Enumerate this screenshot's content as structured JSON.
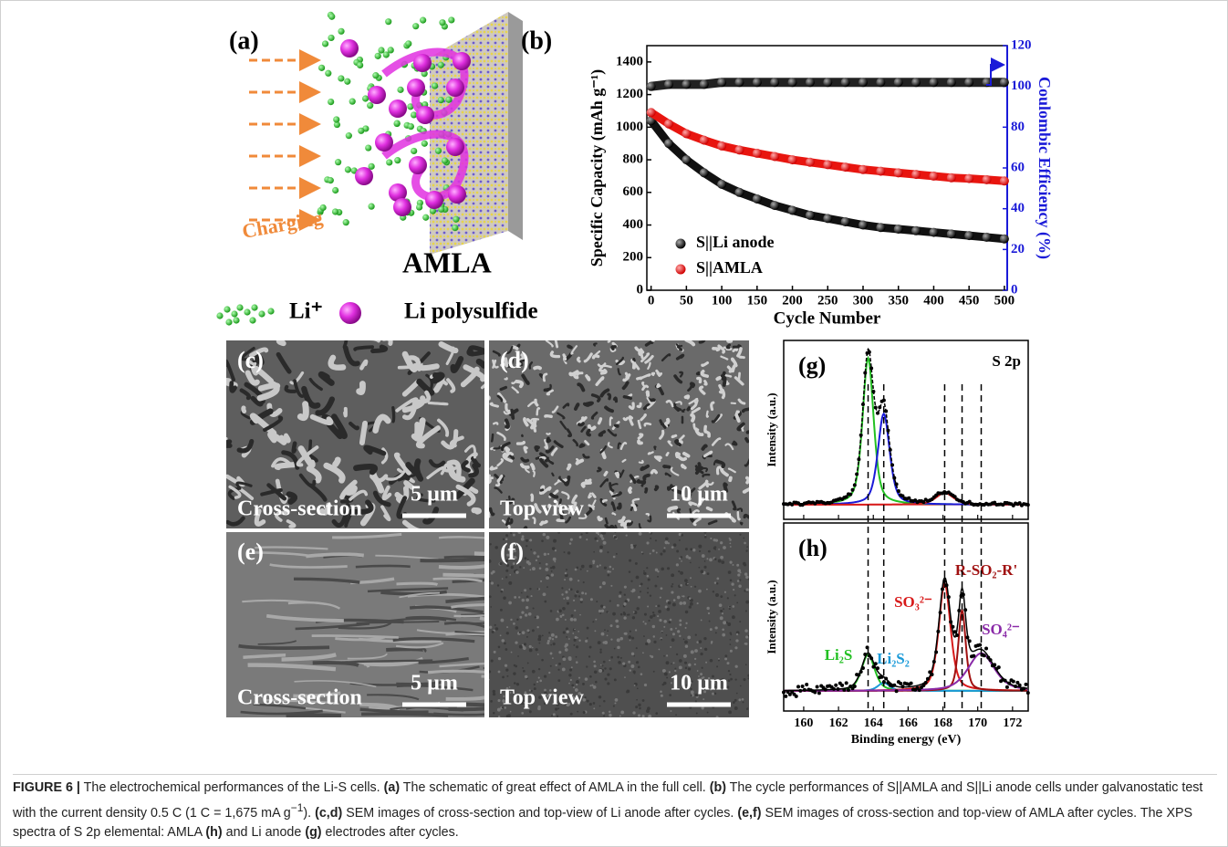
{
  "schematic": {
    "label": "(a)",
    "arrow_text": "Charging",
    "membrane": "AMLA",
    "legend_li": "Li⁺",
    "legend_ps": "Li polysulfide"
  },
  "chart_data": {
    "type": "line",
    "label": "(b)",
    "xlabel": "Cycle Number",
    "ylabel": "Specific Capacity (mAh g⁻¹)",
    "y2label": "Coulombic Efficiency (%)",
    "x": [
      0,
      25,
      50,
      75,
      100,
      125,
      150,
      175,
      200,
      225,
      250,
      275,
      300,
      325,
      350,
      375,
      400,
      425,
      450,
      475,
      500
    ],
    "series": [
      {
        "name": "S||Li anode",
        "color": "#111111",
        "values": [
          1040,
          900,
          800,
          720,
          650,
          600,
          560,
          520,
          490,
          460,
          440,
          420,
          400,
          385,
          375,
          365,
          355,
          345,
          335,
          325,
          315
        ]
      },
      {
        "name": "S||AMLA",
        "color": "#e8150f",
        "values": [
          1090,
          1020,
          960,
          920,
          885,
          860,
          840,
          820,
          800,
          785,
          770,
          755,
          740,
          730,
          720,
          710,
          700,
          690,
          685,
          678,
          670
        ]
      }
    ],
    "efficiency": {
      "axis": "y2",
      "color": "#222222",
      "values": [
        100,
        101,
        101,
        101,
        102,
        102,
        102,
        102,
        102,
        102,
        102,
        102,
        102,
        102,
        102,
        102,
        102,
        102,
        102,
        102,
        102
      ]
    },
    "xlim": [
      -6,
      504
    ],
    "xticks": [
      0,
      50,
      100,
      150,
      200,
      250,
      300,
      350,
      400,
      450,
      500
    ],
    "ylim": [
      0,
      1500
    ],
    "yticks": [
      0,
      200,
      400,
      600,
      800,
      1000,
      1200,
      1400
    ],
    "y2lim": [
      0,
      120
    ],
    "y2ticks": [
      0,
      20,
      40,
      60,
      80,
      100,
      120
    ],
    "y2color": "#1a1ad8"
  },
  "sem": [
    {
      "label": "(c)",
      "view": "Cross-section",
      "scale": "5 µm"
    },
    {
      "label": "(d)",
      "view": "Top view",
      "scale": "10 µm"
    },
    {
      "label": "(e)",
      "view": "Cross-section",
      "scale": "5 µm"
    },
    {
      "label": "(f)",
      "view": "Top view",
      "scale": "10 µm"
    }
  ],
  "xps": {
    "xlabel": "Binding energy (eV)",
    "ylabel": "Intensity (a.u.)",
    "xlim": [
      158.85,
      172.9
    ],
    "xticks": [
      160,
      162,
      164,
      166,
      168,
      170,
      172
    ],
    "reference_lines": [
      163.7,
      164.6,
      168.1,
      169.1,
      170.2
    ],
    "g": {
      "label": "(g)",
      "title": "S 2p",
      "ylim": [
        -0.1,
        1.12
      ],
      "peaks": [
        {
          "center": 163.7,
          "height": 1.0,
          "fwhm": 0.75,
          "color": "#22c022"
        },
        {
          "center": 164.6,
          "height": 0.62,
          "fwhm": 0.8,
          "color": "#1a1ad8"
        },
        {
          "center": 168.1,
          "height": 0.08,
          "fwhm": 1.2,
          "color": "#d81a1a"
        }
      ]
    },
    "h": {
      "label": "(h)",
      "ylim": [
        -0.15,
        1.25
      ],
      "peaks": [
        {
          "center": 163.7,
          "height": 0.27,
          "fwhm": 0.9,
          "color": "#22c022",
          "name": "Li₂S"
        },
        {
          "center": 164.6,
          "height": 0.06,
          "fwhm": 0.8,
          "color": "#1a9ad8",
          "name": "Li₂S₂"
        },
        {
          "center": 168.1,
          "height": 0.8,
          "fwhm": 0.8,
          "color": "#d81a1a",
          "name": "SO₃²⁻"
        },
        {
          "center": 169.1,
          "height": 0.6,
          "fwhm": 0.5,
          "color": "#a01010",
          "name": "R-SO₂-R'"
        },
        {
          "center": 170.2,
          "height": 0.28,
          "fwhm": 1.8,
          "color": "#8a2aa8",
          "name": "SO₄²⁻"
        }
      ]
    }
  },
  "caption": {
    "segments": [
      {
        "text": "FIGURE 6 |",
        "bold": true
      },
      {
        "text": " The electrochemical performances of the Li-S cells. "
      },
      {
        "text": "(a)",
        "bold": true
      },
      {
        "text": " The schematic of great effect of AMLA in the full cell. "
      },
      {
        "text": "(b)",
        "bold": true
      },
      {
        "text": " The cycle performances of S||AMLA and S||Li anode cells under galvanostatic test with the current density 0.5 C (1 C = 1,675 mA g"
      },
      {
        "text": "−1",
        "sup": true
      },
      {
        "text": "). "
      },
      {
        "text": "(c,d)",
        "bold": true
      },
      {
        "text": " SEM images of cross-section and top-view of Li anode after cycles. "
      },
      {
        "text": "(e,f)",
        "bold": true
      },
      {
        "text": " SEM images of cross-section and top-view of AMLA after cycles. The XPS spectra of S 2p elemental: AMLA "
      },
      {
        "text": "(h)",
        "bold": true
      },
      {
        "text": " and Li anode "
      },
      {
        "text": "(g)",
        "bold": true
      },
      {
        "text": " electrodes after cycles."
      }
    ]
  }
}
